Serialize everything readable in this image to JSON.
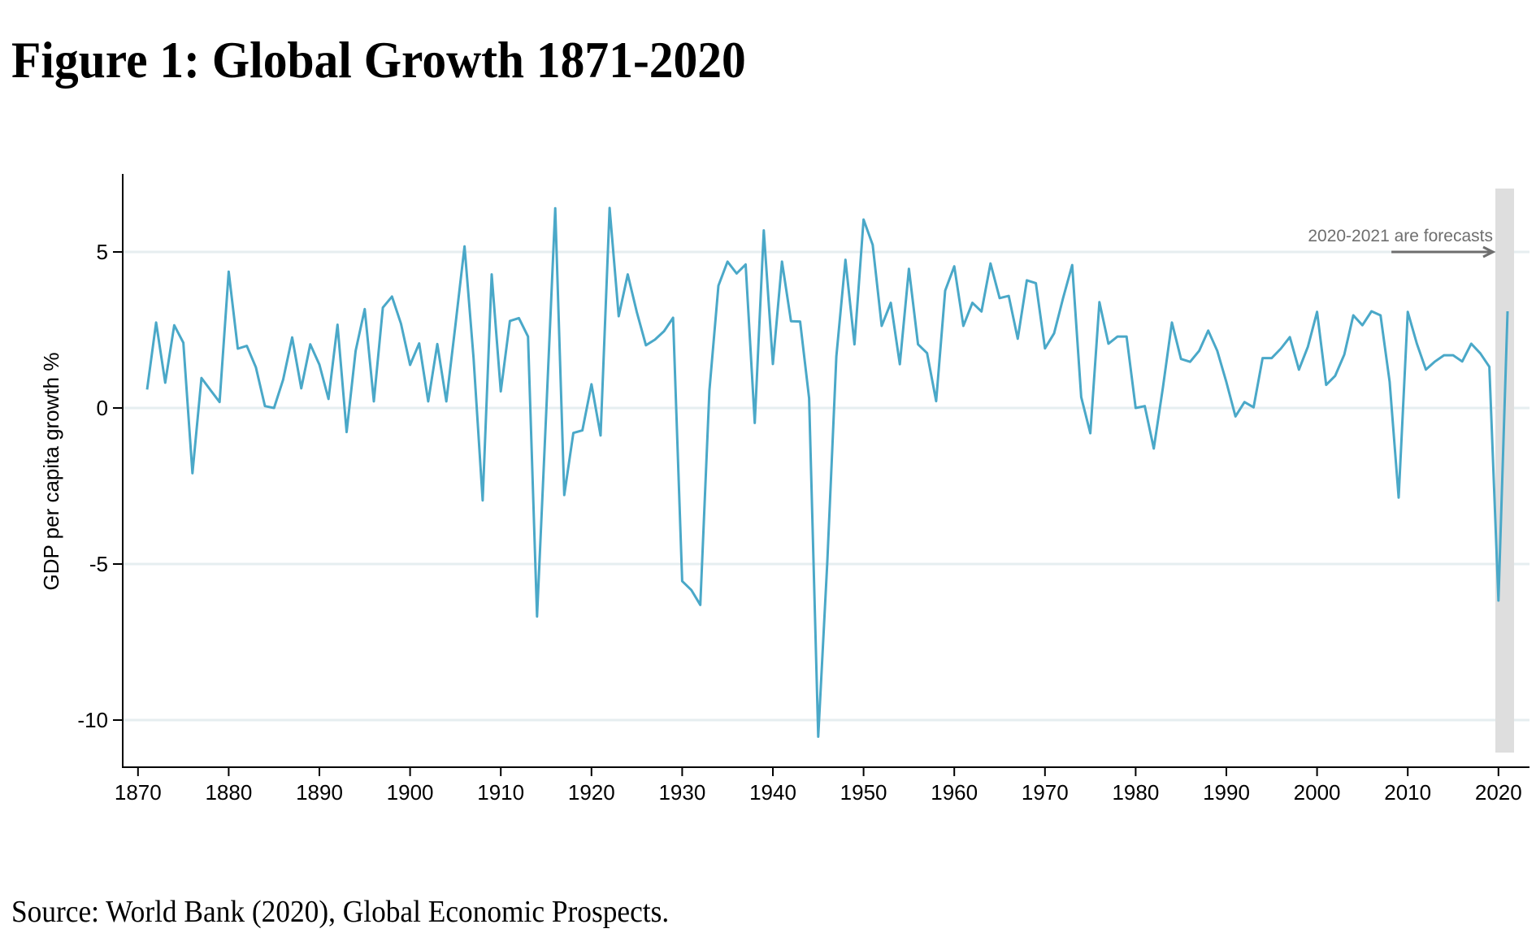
{
  "title": "Figure 1: Global Growth 1871-2020",
  "source": "Source: World Bank (2020), Global Economic Prospects.",
  "chart_data": {
    "type": "line",
    "title": "Figure 1: Global Growth 1871-2020",
    "xlabel": "",
    "ylabel": "GDP per capita growth %",
    "xlim": [
      1868,
      2023
    ],
    "ylim": [
      -11.2,
      7.4
    ],
    "x_ticks": [
      1870,
      1880,
      1890,
      1900,
      1910,
      1920,
      1930,
      1940,
      1950,
      1960,
      1970,
      1980,
      1990,
      2000,
      2010,
      2020
    ],
    "x_tick_labels": [
      "1870",
      "1880",
      "1890",
      "1900",
      "1910",
      "1920",
      "1930",
      "1940",
      "1950",
      "1960",
      "1970",
      "1980",
      "1990",
      "2000",
      "2010",
      "2020"
    ],
    "y_ticks": [
      5,
      0,
      -5,
      -10
    ],
    "y_tick_labels": [
      "5",
      "0",
      "-5",
      "-10"
    ],
    "grid": "horizontal",
    "line_color": "#4aa8c8",
    "grid_color": "#e6eef0",
    "forecast_band": {
      "from": 2019.7,
      "to": 2021.8,
      "color": "#dedede"
    },
    "annotation": {
      "text": "2020-2021 are forecasts",
      "arrow_from_year": 2008.2,
      "arrow_to_year": 2019.5,
      "y_value": 5,
      "color": "#6e6e6e"
    },
    "series": [
      {
        "name": "GDP per capita growth %",
        "x": [
          1871,
          1872,
          1873,
          1874,
          1875,
          1876,
          1877,
          1878,
          1879,
          1880,
          1881,
          1882,
          1883,
          1884,
          1885,
          1886,
          1887,
          1888,
          1889,
          1890,
          1891,
          1892,
          1893,
          1894,
          1895,
          1896,
          1897,
          1898,
          1899,
          1900,
          1901,
          1902,
          1903,
          1904,
          1905,
          1906,
          1907,
          1908,
          1909,
          1910,
          1911,
          1912,
          1913,
          1914,
          1915,
          1916,
          1917,
          1918,
          1919,
          1920,
          1921,
          1922,
          1923,
          1924,
          1925,
          1926,
          1927,
          1928,
          1929,
          1930,
          1931,
          1932,
          1933,
          1934,
          1935,
          1936,
          1937,
          1938,
          1939,
          1940,
          1941,
          1942,
          1943,
          1944,
          1945,
          1946,
          1947,
          1948,
          1949,
          1950,
          1951,
          1952,
          1953,
          1954,
          1955,
          1956,
          1957,
          1958,
          1959,
          1960,
          1961,
          1962,
          1963,
          1964,
          1965,
          1966,
          1967,
          1968,
          1969,
          1970,
          1971,
          1972,
          1973,
          1974,
          1975,
          1976,
          1977,
          1978,
          1979,
          1980,
          1981,
          1982,
          1983,
          1984,
          1985,
          1986,
          1987,
          1988,
          1989,
          1990,
          1991,
          1992,
          1993,
          1994,
          1995,
          1996,
          1997,
          1998,
          1999,
          2000,
          2001,
          2002,
          2003,
          2004,
          2005,
          2006,
          2007,
          2008,
          2009,
          2010,
          2011,
          2012,
          2013,
          2014,
          2015,
          2016,
          2017,
          2018,
          2019,
          2020,
          2021
        ],
        "values": [
          0.59,
          2.74,
          0.81,
          2.65,
          2.09,
          -2.09,
          0.96,
          0.57,
          0.19,
          4.37,
          1.9,
          1.99,
          1.3,
          0.06,
          0.0,
          0.91,
          2.26,
          0.63,
          2.04,
          1.39,
          0.29,
          2.67,
          -0.77,
          1.83,
          3.17,
          0.21,
          3.22,
          3.57,
          2.7,
          1.38,
          2.07,
          0.21,
          2.05,
          0.21,
          2.66,
          5.18,
          1.6,
          -2.96,
          4.28,
          0.53,
          2.79,
          2.88,
          2.29,
          -6.68,
          -0.2,
          6.4,
          -2.79,
          -0.8,
          -0.72,
          0.76,
          -0.88,
          6.41,
          2.94,
          4.28,
          3.07,
          2.01,
          2.19,
          2.46,
          2.89,
          -5.55,
          -5.83,
          -6.31,
          0.56,
          3.92,
          4.69,
          4.31,
          4.6,
          -0.48,
          5.69,
          1.41,
          4.69,
          2.78,
          2.77,
          0.31,
          -10.53,
          -4.92,
          1.65,
          4.75,
          2.04,
          6.04,
          5.23,
          2.63,
          3.37,
          1.4,
          4.46,
          2.04,
          1.76,
          0.22,
          3.76,
          4.54,
          2.63,
          3.37,
          3.09,
          4.63,
          3.52,
          3.59,
          2.22,
          4.09,
          4.0,
          1.91,
          2.39,
          3.52,
          4.58,
          0.35,
          -0.81,
          3.39,
          2.06,
          2.29,
          2.29,
          0.0,
          0.06,
          -1.3,
          0.65,
          2.74,
          1.57,
          1.48,
          1.83,
          2.48,
          1.83,
          0.83,
          -0.27,
          0.19,
          0.02,
          1.6,
          1.6,
          1.9,
          2.27,
          1.23,
          1.97,
          3.08,
          0.74,
          1.03,
          1.71,
          2.97,
          2.65,
          3.1,
          2.97,
          0.84,
          -2.87,
          3.08,
          2.06,
          1.23,
          1.49,
          1.69,
          1.69,
          1.49,
          2.06,
          1.75,
          1.32,
          -6.17,
          3.1
        ]
      }
    ]
  }
}
